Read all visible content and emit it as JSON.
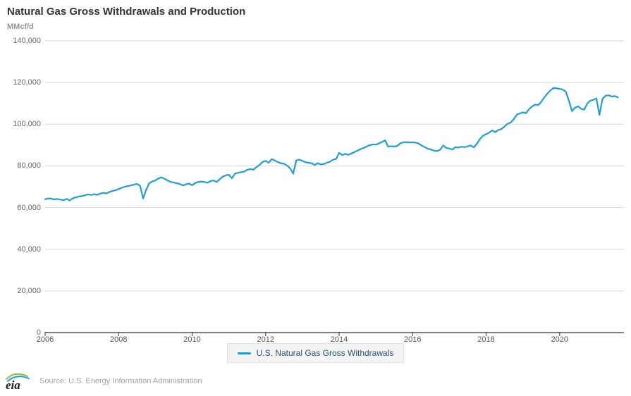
{
  "header": {
    "title": "Natural Gas Gross Withdrawals and Production",
    "unit_label": "MMcf/d"
  },
  "chart_data": {
    "type": "line",
    "title": "Natural Gas Gross Withdrawals and Production",
    "xlabel": "",
    "ylabel": "MMcf/d",
    "grid": true,
    "legend_position": "bottom-center",
    "ylim": [
      0,
      140000
    ],
    "xlim_years": [
      2006,
      2021.75
    ],
    "y_ticks": [
      {
        "value": 0,
        "label": "0"
      },
      {
        "value": 20000,
        "label": "20,000"
      },
      {
        "value": 40000,
        "label": "40,000"
      },
      {
        "value": 60000,
        "label": "60,000"
      },
      {
        "value": 80000,
        "label": "80,000"
      },
      {
        "value": 100000,
        "label": "100,000"
      },
      {
        "value": 120000,
        "label": "120,000"
      },
      {
        "value": 140000,
        "label": "140,000"
      }
    ],
    "x_ticks": [
      {
        "year": 2006,
        "label": "2006"
      },
      {
        "year": 2008,
        "label": "2008"
      },
      {
        "year": 2010,
        "label": "2010"
      },
      {
        "year": 2012,
        "label": "2012"
      },
      {
        "year": 2014,
        "label": "2014"
      },
      {
        "year": 2016,
        "label": "2016"
      },
      {
        "year": 2018,
        "label": "2018"
      },
      {
        "year": 2020,
        "label": "2020"
      }
    ],
    "series": [
      {
        "name": "U.S. Natural Gas Gross Withdrawals",
        "color": "#1f9fd8",
        "unit": "MMcf/d",
        "start": "2006-01",
        "interval": "monthly",
        "values": [
          64000,
          64400,
          64300,
          63900,
          64100,
          63800,
          63500,
          64200,
          63400,
          64400,
          64900,
          65300,
          65500,
          65900,
          66300,
          66000,
          66400,
          66100,
          66700,
          67100,
          66800,
          67500,
          68000,
          68300,
          68900,
          69500,
          70000,
          70300,
          70600,
          71000,
          71400,
          70400,
          64400,
          68500,
          71700,
          72500,
          73000,
          74000,
          74500,
          73800,
          73000,
          72300,
          72000,
          71700,
          71300,
          70600,
          71200,
          71500,
          70700,
          71800,
          72300,
          72500,
          72300,
          71900,
          72700,
          73000,
          72300,
          73600,
          74800,
          75500,
          75700,
          74100,
          76300,
          76700,
          77000,
          77300,
          78100,
          78500,
          78200,
          79400,
          80500,
          81900,
          82400,
          81500,
          83300,
          82600,
          81800,
          81300,
          81000,
          80200,
          78800,
          76300,
          82600,
          83000,
          82400,
          81800,
          81500,
          81300,
          80400,
          81300,
          80700,
          81000,
          81500,
          82000,
          83000,
          83300,
          86300,
          85200,
          85800,
          85300,
          86000,
          86600,
          87300,
          88100,
          88600,
          89300,
          90000,
          90300,
          90200,
          90800,
          91500,
          92300,
          89200,
          89500,
          89300,
          89600,
          90900,
          91300,
          91400,
          91300,
          91300,
          91200,
          90700,
          89700,
          89000,
          88200,
          87900,
          87300,
          87100,
          87800,
          89800,
          88600,
          88300,
          87900,
          89000,
          88800,
          89200,
          89000,
          89400,
          89800,
          88900,
          90700,
          93000,
          94500,
          95200,
          96000,
          97100,
          96200,
          97300,
          97700,
          98900,
          100200,
          100800,
          102400,
          104600,
          105200,
          105700,
          105300,
          107200,
          108500,
          109400,
          109200,
          110700,
          112900,
          114700,
          116200,
          117400,
          117200,
          117000,
          116600,
          115700,
          111400,
          106300,
          107900,
          108600,
          107400,
          107000,
          109900,
          111300,
          111700,
          112400,
          104500,
          112200,
          113700,
          113900,
          113300,
          113500,
          112900
        ]
      }
    ],
    "colors": {
      "line": "#1f9fd8",
      "gridline": "#d8d8d8",
      "axis": "#333333",
      "legend_text": "#2a516d",
      "legend_bg": "#f4f4f4"
    }
  },
  "legend": {
    "items": [
      {
        "label": "U.S. Natural Gas Gross Withdrawals",
        "color": "#1f9fd8"
      }
    ]
  },
  "footer": {
    "logo_text": "eia",
    "source": "Source: U.S. Energy Information Administration"
  }
}
